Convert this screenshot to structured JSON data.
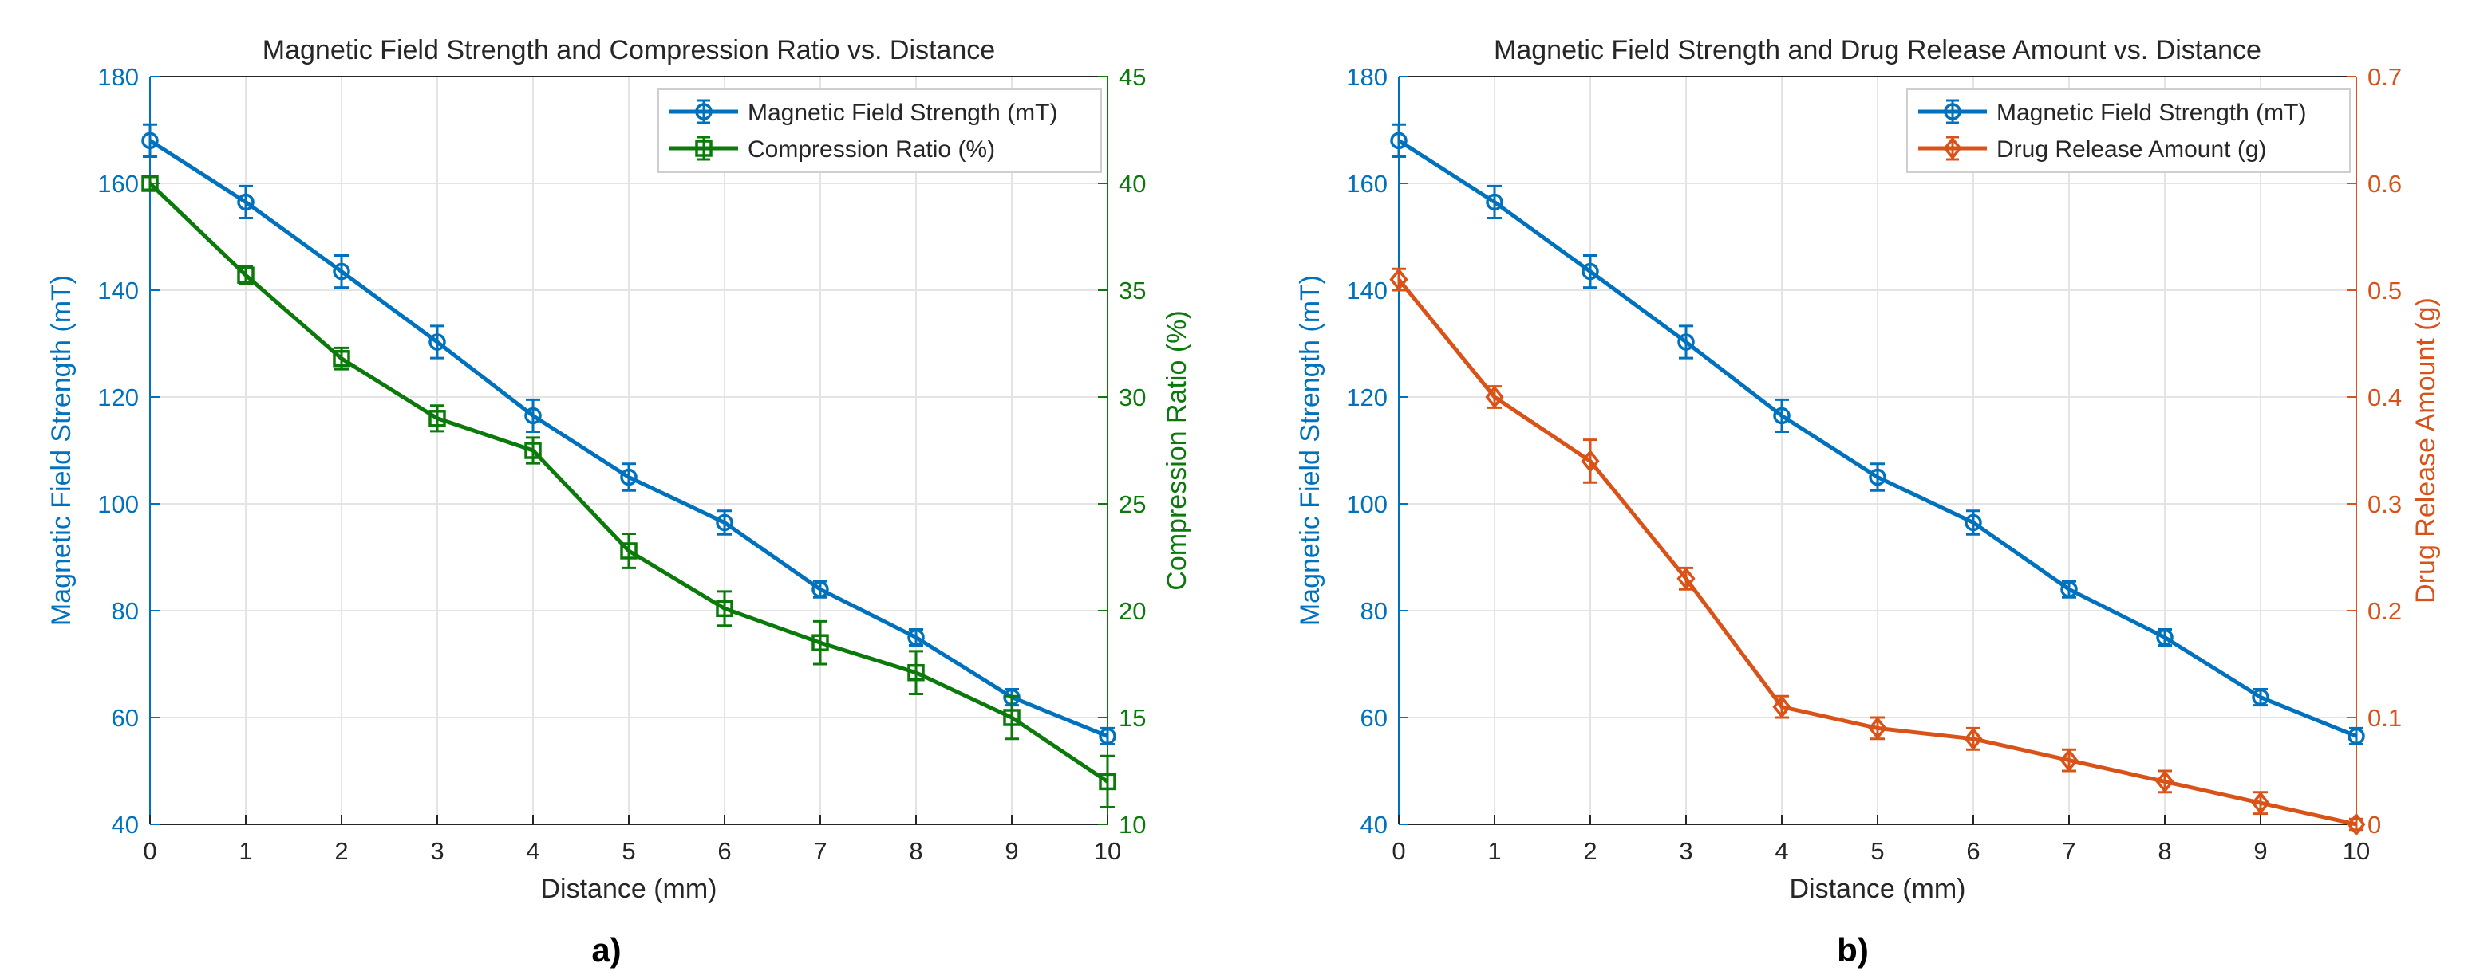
{
  "colors": {
    "blue": "#0072BD",
    "green": "#0B7A0B",
    "orange": "#D95319",
    "grid": "#E4E4E4",
    "axis": "#262626",
    "text": "#262626"
  },
  "chart_data": [
    {
      "type": "line",
      "title": "Magnetic Field Strength and Compression Ratio vs. Distance",
      "panel_label": "a)",
      "xlabel": "Distance (mm)",
      "ylabel_left": "Magnetic Field Strength (mT)",
      "ylabel_right": "Compression Ratio (%)",
      "xlim": [
        0,
        10
      ],
      "ylim_left": [
        40,
        180
      ],
      "ylim_right": [
        10,
        45
      ],
      "xticks": [
        0,
        1,
        2,
        3,
        4,
        5,
        6,
        7,
        8,
        9,
        10
      ],
      "yticks_left": [
        40,
        60,
        80,
        100,
        120,
        140,
        160,
        180
      ],
      "yticks_right": [
        10,
        15,
        20,
        25,
        30,
        35,
        40,
        45
      ],
      "grid": true,
      "legend_position": "top-right",
      "x": [
        0,
        1,
        2,
        3,
        4,
        5,
        6,
        7,
        8,
        9,
        10
      ],
      "series": [
        {
          "name": "Magnetic Field Strength (mT)",
          "axis": "left",
          "color": "#0072BD",
          "marker": "circle",
          "values": [
            168,
            156.5,
            143.5,
            130.3,
            116.5,
            105,
            96.5,
            84,
            75,
            63.8,
            56.5
          ],
          "errors": [
            3,
            3,
            3,
            3,
            3,
            2.5,
            2.2,
            1.5,
            1.5,
            1.5,
            1.5
          ]
        },
        {
          "name": "Compression Ratio (%)",
          "axis": "right",
          "color": "#0B7A0B",
          "marker": "square",
          "values": [
            40,
            35.7,
            31.8,
            29,
            27.5,
            22.8,
            20.1,
            18.5,
            17.1,
            15,
            12
          ],
          "errors": [
            0.3,
            0.4,
            0.5,
            0.6,
            0.6,
            0.8,
            0.8,
            1,
            1,
            1,
            1.2
          ]
        }
      ]
    },
    {
      "type": "line",
      "title": "Magnetic Field Strength and Drug Release Amount vs. Distance",
      "panel_label": "b)",
      "xlabel": "Distance (mm)",
      "ylabel_left": "Magnetic Field Strength (mT)",
      "ylabel_right": "Drug Release Amount (g)",
      "xlim": [
        0,
        10
      ],
      "ylim_left": [
        40,
        180
      ],
      "ylim_right": [
        0,
        0.7
      ],
      "xticks": [
        0,
        1,
        2,
        3,
        4,
        5,
        6,
        7,
        8,
        9,
        10
      ],
      "yticks_left": [
        40,
        60,
        80,
        100,
        120,
        140,
        160,
        180
      ],
      "yticks_right": [
        0,
        0.1,
        0.2,
        0.3,
        0.4,
        0.5,
        0.6,
        0.7
      ],
      "grid": true,
      "legend_position": "top-right",
      "x": [
        0,
        1,
        2,
        3,
        4,
        5,
        6,
        7,
        8,
        9,
        10
      ],
      "series": [
        {
          "name": "Magnetic Field Strength (mT)",
          "axis": "left",
          "color": "#0072BD",
          "marker": "circle",
          "values": [
            168,
            156.5,
            143.5,
            130.3,
            116.5,
            105,
            96.5,
            84,
            75,
            63.8,
            56.5
          ],
          "errors": [
            3,
            3,
            3,
            3,
            3,
            2.5,
            2.2,
            1.5,
            1.5,
            1.5,
            1.5
          ]
        },
        {
          "name": "Drug Release Amount (g)",
          "axis": "right",
          "color": "#D95319",
          "marker": "diamond",
          "values": [
            0.51,
            0.4,
            0.34,
            0.23,
            0.11,
            0.09,
            0.08,
            0.06,
            0.04,
            0.02,
            0
          ],
          "errors": [
            0.01,
            0.01,
            0.02,
            0.01,
            0.01,
            0.01,
            0.01,
            0.01,
            0.01,
            0.01,
            0.005
          ]
        }
      ]
    }
  ]
}
